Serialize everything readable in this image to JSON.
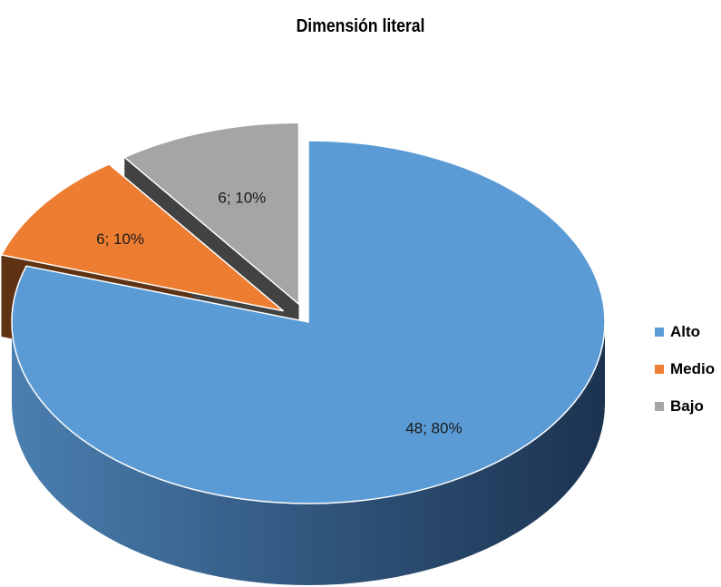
{
  "chart_data": {
    "type": "pie",
    "title": "Dimensión literal",
    "categories": [
      "Alto",
      "Medio",
      "Bajo"
    ],
    "values": [
      48,
      6,
      6
    ],
    "percentages": [
      80,
      10,
      10
    ],
    "data_labels": [
      "48; 80%",
      "6; 10%",
      "6; 10%"
    ],
    "colors": [
      "#5B9BD5",
      "#ED7D31",
      "#A5A5A5"
    ],
    "legend_position": "right",
    "style": "3d exploded"
  }
}
